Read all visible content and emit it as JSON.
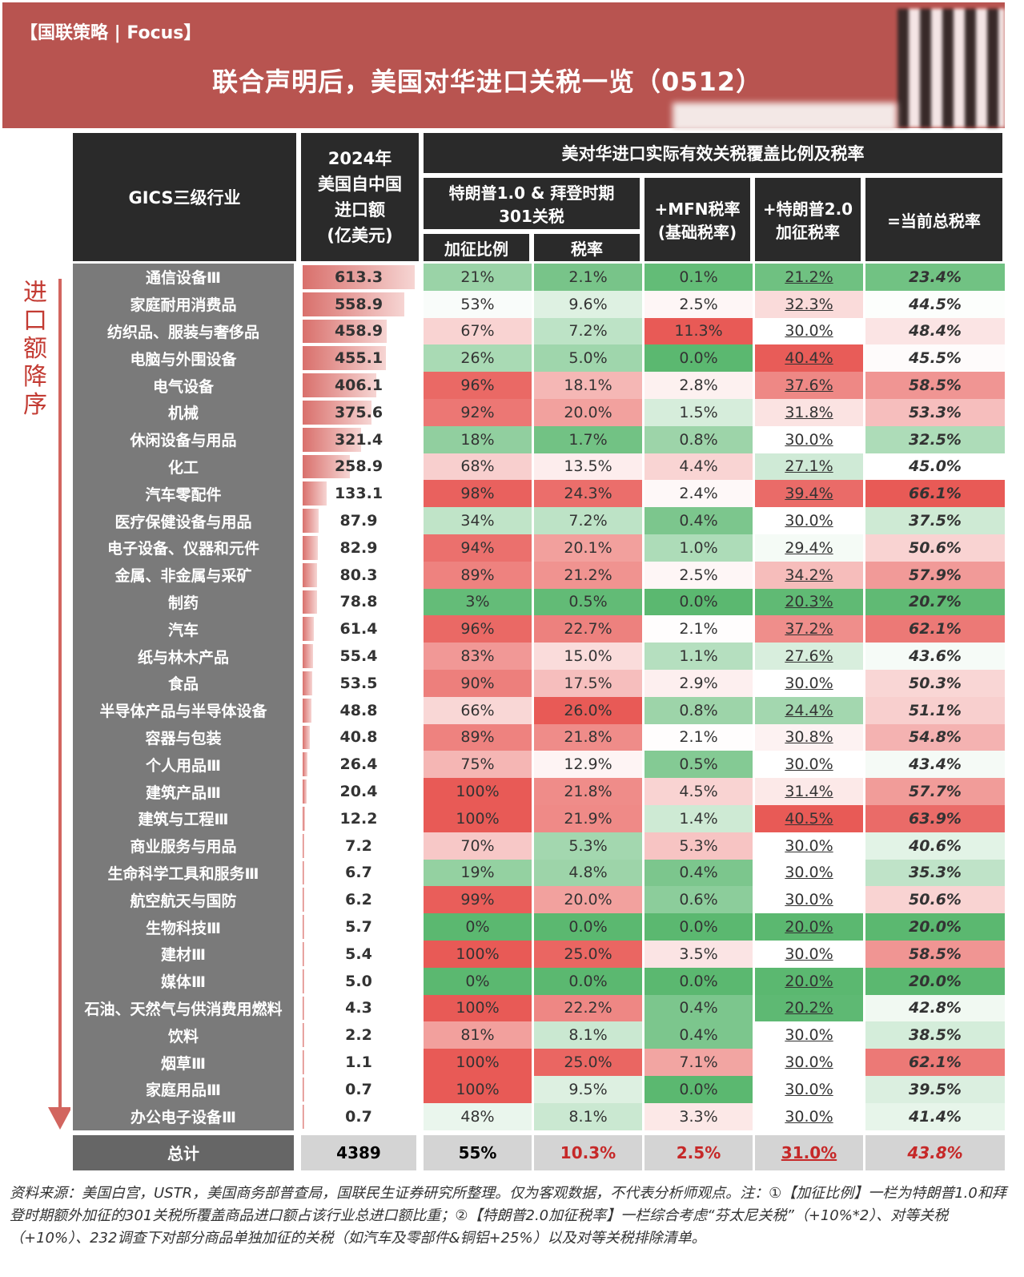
{
  "brand": "【国联策略 | Focus】",
  "title": "联合声明后，美国对华进口关税一览（0512）",
  "side_label": "进口额降序",
  "headers": {
    "industry": "GICS三级行业",
    "import_line1": "2024年",
    "import_line2": "美国自中国",
    "import_line3": "进口额",
    "import_line4": "(亿美元)",
    "group": "美对华进口实际有效关税覆盖比例及税率",
    "s301_line1": "特朗普1.0 & 拜登时期",
    "s301_line2": "301关税",
    "coverage": "加征比例",
    "rate": "税率",
    "mfn_line1": "+MFN税率",
    "mfn_line2": "(基础税率)",
    "t2_line1": "+特朗普2.0",
    "t2_line2": "加征税率",
    "total": "=当前总税率"
  },
  "rows": [
    {
      "industry": "通信设备Ⅲ",
      "import": "613.3",
      "coverage": "21%",
      "rate": "2.1%",
      "mfn": "0.1%",
      "t2": "21.2%",
      "total": "23.4%"
    },
    {
      "industry": "家庭耐用消费品",
      "import": "558.9",
      "coverage": "53%",
      "rate": "9.6%",
      "mfn": "2.5%",
      "t2": "32.3%",
      "total": "44.5%"
    },
    {
      "industry": "纺织品、服装与奢侈品",
      "import": "458.9",
      "coverage": "67%",
      "rate": "7.2%",
      "mfn": "11.3%",
      "t2": "30.0%",
      "total": "48.4%"
    },
    {
      "industry": "电脑与外围设备",
      "import": "455.1",
      "coverage": "26%",
      "rate": "5.0%",
      "mfn": "0.0%",
      "t2": "40.4%",
      "total": "45.5%"
    },
    {
      "industry": "电气设备",
      "import": "406.1",
      "coverage": "96%",
      "rate": "18.1%",
      "mfn": "2.8%",
      "t2": "37.6%",
      "total": "58.5%"
    },
    {
      "industry": "机械",
      "import": "375.6",
      "coverage": "92%",
      "rate": "20.0%",
      "mfn": "1.5%",
      "t2": "31.8%",
      "total": "53.3%"
    },
    {
      "industry": "休闲设备与用品",
      "import": "321.4",
      "coverage": "18%",
      "rate": "1.7%",
      "mfn": "0.8%",
      "t2": "30.0%",
      "total": "32.5%"
    },
    {
      "industry": "化工",
      "import": "258.9",
      "coverage": "68%",
      "rate": "13.5%",
      "mfn": "4.4%",
      "t2": "27.1%",
      "total": "45.0%"
    },
    {
      "industry": "汽车零配件",
      "import": "133.1",
      "coverage": "98%",
      "rate": "24.3%",
      "mfn": "2.4%",
      "t2": "39.4%",
      "total": "66.1%"
    },
    {
      "industry": "医疗保健设备与用品",
      "import": "87.9",
      "coverage": "34%",
      "rate": "7.2%",
      "mfn": "0.4%",
      "t2": "30.0%",
      "total": "37.5%"
    },
    {
      "industry": "电子设备、仪器和元件",
      "import": "82.9",
      "coverage": "94%",
      "rate": "20.1%",
      "mfn": "1.0%",
      "t2": "29.4%",
      "total": "50.6%"
    },
    {
      "industry": "金属、非金属与采矿",
      "import": "80.3",
      "coverage": "89%",
      "rate": "21.2%",
      "mfn": "2.5%",
      "t2": "34.2%",
      "total": "57.9%"
    },
    {
      "industry": "制药",
      "import": "78.8",
      "coverage": "3%",
      "rate": "0.5%",
      "mfn": "0.0%",
      "t2": "20.3%",
      "total": "20.7%"
    },
    {
      "industry": "汽车",
      "import": "61.4",
      "coverage": "96%",
      "rate": "22.7%",
      "mfn": "2.1%",
      "t2": "37.2%",
      "total": "62.1%"
    },
    {
      "industry": "纸与林木产品",
      "import": "55.4",
      "coverage": "83%",
      "rate": "15.0%",
      "mfn": "1.1%",
      "t2": "27.6%",
      "total": "43.6%"
    },
    {
      "industry": "食品",
      "import": "53.5",
      "coverage": "90%",
      "rate": "17.5%",
      "mfn": "2.9%",
      "t2": "30.0%",
      "total": "50.3%"
    },
    {
      "industry": "半导体产品与半导体设备",
      "import": "48.8",
      "coverage": "66%",
      "rate": "26.0%",
      "mfn": "0.8%",
      "t2": "24.4%",
      "total": "51.1%"
    },
    {
      "industry": "容器与包装",
      "import": "40.8",
      "coverage": "89%",
      "rate": "21.8%",
      "mfn": "2.1%",
      "t2": "30.8%",
      "total": "54.8%"
    },
    {
      "industry": "个人用品Ⅲ",
      "import": "26.4",
      "coverage": "75%",
      "rate": "12.9%",
      "mfn": "0.5%",
      "t2": "30.0%",
      "total": "43.4%"
    },
    {
      "industry": "建筑产品Ⅲ",
      "import": "20.4",
      "coverage": "100%",
      "rate": "21.8%",
      "mfn": "4.5%",
      "t2": "31.4%",
      "total": "57.7%"
    },
    {
      "industry": "建筑与工程Ⅲ",
      "import": "12.2",
      "coverage": "100%",
      "rate": "21.9%",
      "mfn": "1.4%",
      "t2": "40.5%",
      "total": "63.9%"
    },
    {
      "industry": "商业服务与用品",
      "import": "7.2",
      "coverage": "70%",
      "rate": "5.3%",
      "mfn": "5.3%",
      "t2": "30.0%",
      "total": "40.6%"
    },
    {
      "industry": "生命科学工具和服务Ⅲ",
      "import": "6.7",
      "coverage": "19%",
      "rate": "4.8%",
      "mfn": "0.4%",
      "t2": "30.0%",
      "total": "35.3%"
    },
    {
      "industry": "航空航天与国防",
      "import": "6.2",
      "coverage": "99%",
      "rate": "20.0%",
      "mfn": "0.6%",
      "t2": "30.0%",
      "total": "50.6%"
    },
    {
      "industry": "生物科技Ⅲ",
      "import": "5.7",
      "coverage": "0%",
      "rate": "0.0%",
      "mfn": "0.0%",
      "t2": "20.0%",
      "total": "20.0%"
    },
    {
      "industry": "建材Ⅲ",
      "import": "5.4",
      "coverage": "100%",
      "rate": "25.0%",
      "mfn": "3.5%",
      "t2": "30.0%",
      "total": "58.5%"
    },
    {
      "industry": "媒体Ⅲ",
      "import": "5.0",
      "coverage": "0%",
      "rate": "0.0%",
      "mfn": "0.0%",
      "t2": "20.0%",
      "total": "20.0%"
    },
    {
      "industry": "石油、天然气与供消费用燃料",
      "import": "4.3",
      "coverage": "100%",
      "rate": "22.2%",
      "mfn": "0.4%",
      "t2": "20.2%",
      "total": "42.8%"
    },
    {
      "industry": "饮料",
      "import": "2.2",
      "coverage": "81%",
      "rate": "8.1%",
      "mfn": "0.4%",
      "t2": "30.0%",
      "total": "38.5%"
    },
    {
      "industry": "烟草Ⅲ",
      "import": "1.1",
      "coverage": "100%",
      "rate": "25.0%",
      "mfn": "7.1%",
      "t2": "30.0%",
      "total": "62.1%"
    },
    {
      "industry": "家庭用品Ⅲ",
      "import": "0.7",
      "coverage": "100%",
      "rate": "9.5%",
      "mfn": "0.0%",
      "t2": "30.0%",
      "total": "39.5%"
    },
    {
      "industry": "办公电子设备Ⅲ",
      "import": "0.7",
      "coverage": "48%",
      "rate": "8.1%",
      "mfn": "3.3%",
      "t2": "30.0%",
      "total": "41.4%"
    }
  ],
  "total_row": {
    "industry": "总计",
    "import": "4389",
    "coverage": "55%",
    "rate": "10.3%",
    "mfn": "2.5%",
    "t2": "31.0%",
    "total": "43.8%"
  },
  "colors": {
    "banner": "#b85450",
    "header": "#2a2a2a",
    "industry_cell": "#7a7a7a",
    "green": "#5bb870",
    "red": "#e8605c",
    "arrow": "#d2655f"
  },
  "footnote": "资料来源：美国白宫，USTR，美国商务部普查局，国联民生证券研究所整理。仅为客观数据，不代表分析师观点。注：①【加征比例】一栏为特朗普1.0和拜登时期额外加征的301关税所覆盖商品进口额占该行业总进口额比重；②【特朗普2.0加征税率】一栏综合考虑“芬太尼关税”（+10%*2）、对等关税（+10%）、232调查下对部分商品单独加征的关税（如汽车及零部件&铜铝+25%）以及对等关税排除清单。"
}
